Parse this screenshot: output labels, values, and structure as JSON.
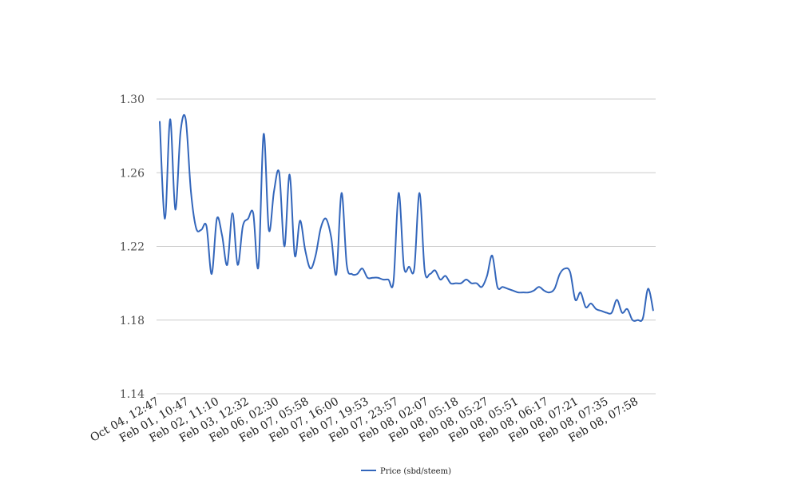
{
  "chart_data": {
    "type": "line",
    "title": "",
    "xlabel": "",
    "ylabel": "",
    "ylim": [
      1.14,
      1.3
    ],
    "yticks": [
      "1.30",
      "1.26",
      "1.22",
      "1.18",
      "1.14"
    ],
    "ytick_values": [
      1.3,
      1.26,
      1.22,
      1.18,
      1.14
    ],
    "grid": "horizontal",
    "legend_position": "bottom",
    "series_color": "#3366bb",
    "grid_color": "#cccccc",
    "x_tick_labels": [
      "Oct 04, 12:47",
      "Feb 01, 10:47",
      "Feb 02, 11:10",
      "Feb 03, 12:32",
      "Feb 06, 02:30",
      "Feb 07, 05:58",
      "Feb 07, 16:00",
      "Feb 07, 19:53",
      "Feb 07, 23:57",
      "Feb 08, 02:07",
      "Feb 08, 05:18",
      "Feb 08, 05:27",
      "Feb 08, 05:51",
      "Feb 08, 06:17",
      "Feb 08, 07:21",
      "Feb 08, 07:35",
      "Feb 08, 07:58"
    ],
    "series": [
      {
        "name": "Price (sbd/steem)",
        "values": [
          1.288,
          1.235,
          1.289,
          1.24,
          1.282,
          1.289,
          1.25,
          1.23,
          1.229,
          1.231,
          1.205,
          1.235,
          1.226,
          1.21,
          1.238,
          1.21,
          1.231,
          1.235,
          1.238,
          1.209,
          1.281,
          1.229,
          1.25,
          1.26,
          1.22,
          1.259,
          1.215,
          1.234,
          1.218,
          1.208,
          1.215,
          1.23,
          1.235,
          1.225,
          1.205,
          1.249,
          1.21,
          1.205,
          1.205,
          1.208,
          1.203,
          1.203,
          1.203,
          1.202,
          1.202,
          1.201,
          1.249,
          1.209,
          1.209,
          1.208,
          1.249,
          1.207,
          1.205,
          1.207,
          1.202,
          1.204,
          1.2,
          1.2,
          1.2,
          1.202,
          1.2,
          1.2,
          1.198,
          1.204,
          1.215,
          1.198,
          1.198,
          1.197,
          1.196,
          1.195,
          1.195,
          1.195,
          1.196,
          1.198,
          1.196,
          1.195,
          1.197,
          1.205,
          1.208,
          1.206,
          1.191,
          1.195,
          1.187,
          1.189,
          1.186,
          1.185,
          1.184,
          1.184,
          1.191,
          1.184,
          1.186,
          1.18,
          1.18,
          1.181,
          1.197,
          1.185
        ]
      }
    ]
  }
}
